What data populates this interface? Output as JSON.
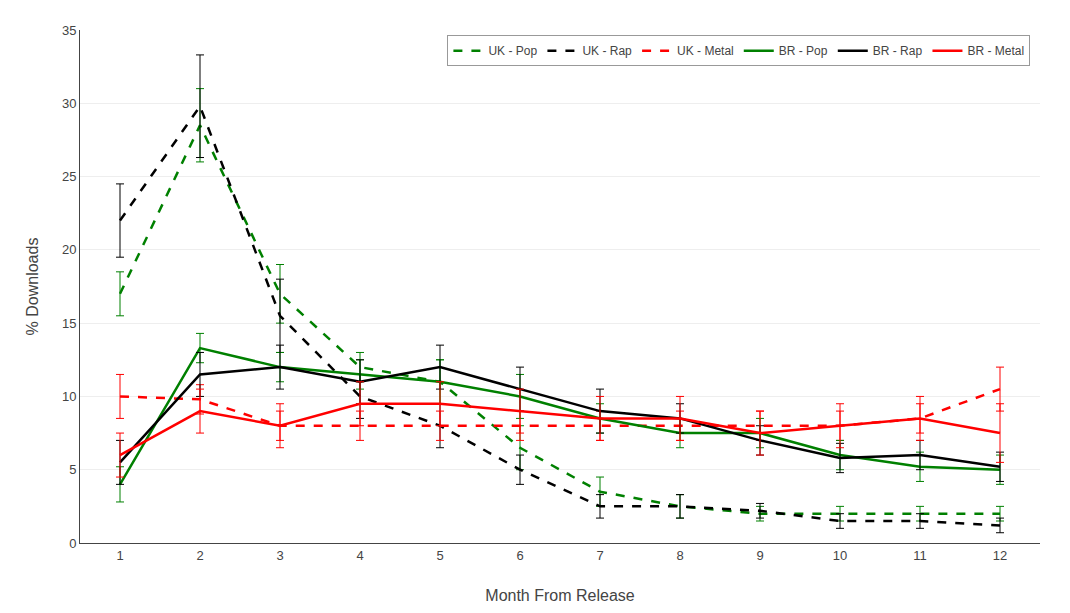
{
  "chart_data": {
    "type": "line",
    "xlabel": "Month From Release",
    "ylabel": "% Downloads",
    "x": [
      1,
      2,
      3,
      4,
      5,
      6,
      7,
      8,
      9,
      10,
      11,
      12
    ],
    "series": [
      {
        "name": "UK - Pop",
        "color": "#008000",
        "line_style": "dashed",
        "values": [
          17.0,
          28.5,
          17.0,
          12.0,
          11.0,
          6.5,
          3.5,
          2.5,
          2.0,
          2.0,
          2.0,
          2.0
        ],
        "error": [
          1.5,
          2.5,
          2.0,
          1.0,
          1.5,
          1.5,
          1.0,
          0.8,
          0.5,
          0.5,
          0.5,
          0.5
        ]
      },
      {
        "name": "UK - Rap",
        "color": "#000000",
        "line_style": "dashed",
        "values": [
          22.0,
          29.8,
          15.5,
          10.0,
          8.0,
          5.0,
          2.5,
          2.5,
          2.2,
          1.5,
          1.5,
          1.2
        ],
        "error": [
          2.5,
          3.5,
          2.5,
          1.5,
          1.5,
          1.0,
          0.8,
          0.8,
          0.5,
          0.5,
          0.5,
          0.5
        ]
      },
      {
        "name": "UK - Metal",
        "color": "#FF0000",
        "line_style": "dashed",
        "values": [
          10.0,
          9.8,
          8.0,
          8.0,
          8.0,
          8.0,
          8.0,
          8.0,
          8.0,
          8.0,
          8.5,
          10.5
        ],
        "error": [
          1.5,
          1.0,
          1.0,
          1.0,
          1.0,
          1.0,
          1.0,
          1.0,
          1.0,
          1.0,
          1.0,
          1.5
        ]
      },
      {
        "name": "BR - Pop",
        "color": "#008000",
        "line_style": "solid",
        "values": [
          4.0,
          13.3,
          12.0,
          11.5,
          11.0,
          10.0,
          8.5,
          7.5,
          7.5,
          6.0,
          5.2,
          5.0
        ],
        "error": [
          1.2,
          1.0,
          1.0,
          1.0,
          1.5,
          1.5,
          1.0,
          1.0,
          1.0,
          1.0,
          1.0,
          1.0
        ]
      },
      {
        "name": "BR - Rap",
        "color": "#000000",
        "line_style": "solid",
        "values": [
          5.5,
          11.5,
          12.0,
          11.0,
          12.0,
          10.5,
          9.0,
          8.5,
          7.0,
          5.8,
          6.0,
          5.2
        ],
        "error": [
          1.5,
          1.5,
          1.5,
          1.5,
          1.5,
          1.5,
          1.5,
          1.0,
          1.0,
          1.0,
          1.0,
          1.0
        ]
      },
      {
        "name": "BR - Metal",
        "color": "#FF0000",
        "line_style": "solid",
        "values": [
          6.0,
          9.0,
          8.0,
          9.5,
          9.5,
          9.0,
          8.5,
          8.5,
          7.5,
          8.0,
          8.5,
          7.5
        ],
        "error": [
          1.5,
          1.5,
          1.5,
          1.5,
          1.5,
          1.5,
          1.5,
          1.5,
          1.5,
          1.5,
          1.5,
          2.0
        ]
      }
    ],
    "xlim": [
      0.5,
      12.5
    ],
    "xticks": [
      1,
      2,
      3,
      4,
      5,
      6,
      7,
      8,
      9,
      10,
      11,
      12
    ],
    "ylim": [
      0,
      35
    ],
    "yticks": [
      0,
      5,
      10,
      15,
      20,
      25,
      30,
      35
    ],
    "grid": true,
    "legend": "upper right"
  }
}
